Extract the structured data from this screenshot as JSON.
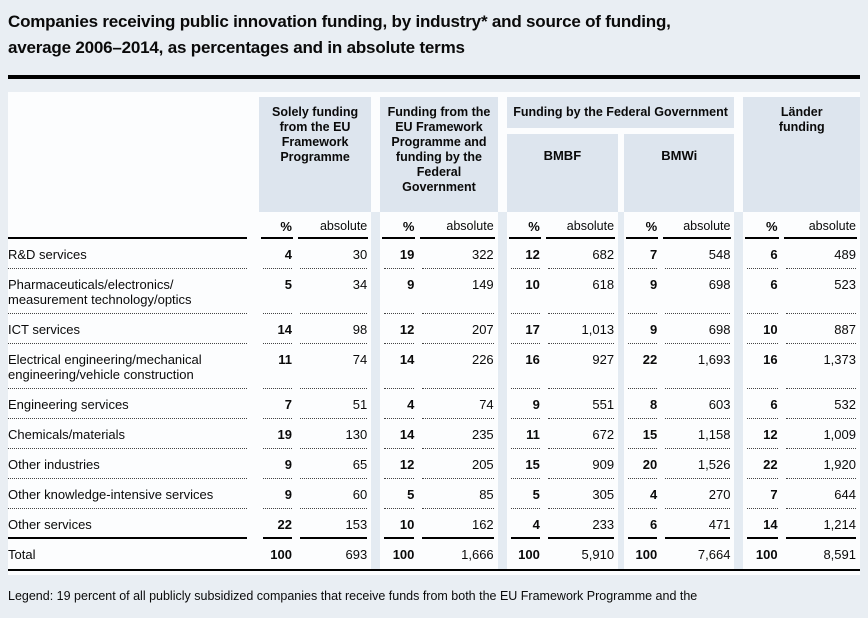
{
  "title": {
    "line1": "Companies receiving public innovation funding, by industry* and source of funding,",
    "line2": "average 2006–2014, as percentages and in absolute terms"
  },
  "chart_data": {
    "type": "table",
    "title": "Companies receiving public innovation funding, by industry and source of funding, average 2006–2014, as percentages and in absolute terms",
    "column_groups": [
      {
        "label": "Solely funding\nfrom the EU\nFramework\nProgramme"
      },
      {
        "label": "Funding from the\nEU Framework\nProgramme and\nfunding by the\nFederal\nGovernment"
      },
      {
        "label": "Funding by the Federal Government",
        "subgroups": [
          "BMBF",
          "BMWi"
        ]
      },
      {
        "label": "Länder\nfunding"
      }
    ],
    "sub_columns": {
      "percent": "%",
      "absolute": "absolute"
    },
    "rows": [
      {
        "label": "R&D services",
        "values": [
          "4",
          "30",
          "19",
          "322",
          "12",
          "682",
          "7",
          "548",
          "6",
          "489"
        ]
      },
      {
        "label": "Pharmaceuticals/electronics/\nmeasurement technology/optics",
        "values": [
          "5",
          "34",
          "9",
          "149",
          "10",
          "618",
          "9",
          "698",
          "6",
          "523"
        ]
      },
      {
        "label": "ICT services",
        "values": [
          "14",
          "98",
          "12",
          "207",
          "17",
          "1,013",
          "9",
          "698",
          "10",
          "887"
        ]
      },
      {
        "label": "Electrical engineering/mechanical\nengineering/vehicle construction",
        "values": [
          "11",
          "74",
          "14",
          "226",
          "16",
          "927",
          "22",
          "1,693",
          "16",
          "1,373"
        ]
      },
      {
        "label": "Engineering services",
        "values": [
          "7",
          "51",
          "4",
          "74",
          "9",
          "551",
          "8",
          "603",
          "6",
          "532"
        ]
      },
      {
        "label": "Chemicals/materials",
        "values": [
          "19",
          "130",
          "14",
          "235",
          "11",
          "672",
          "15",
          "1,158",
          "12",
          "1,009"
        ]
      },
      {
        "label": "Other industries",
        "values": [
          "9",
          "65",
          "12",
          "205",
          "15",
          "909",
          "20",
          "1,526",
          "22",
          "1,920"
        ]
      },
      {
        "label": "Other knowledge-intensive services",
        "values": [
          "9",
          "60",
          "5",
          "85",
          "5",
          "305",
          "4",
          "270",
          "7",
          "644"
        ]
      },
      {
        "label": "Other services",
        "values": [
          "22",
          "153",
          "10",
          "162",
          "4",
          "233",
          "6",
          "471",
          "14",
          "1,214"
        ]
      }
    ],
    "total": {
      "label": "Total",
      "values": [
        "100",
        "693",
        "100",
        "1,666",
        "100",
        "5,910",
        "100",
        "7,664",
        "100",
        "8,591"
      ]
    }
  },
  "legend": "Legend: 19 percent of all publicly subsidized companies that receive funds from both the EU Framework Programme and the"
}
